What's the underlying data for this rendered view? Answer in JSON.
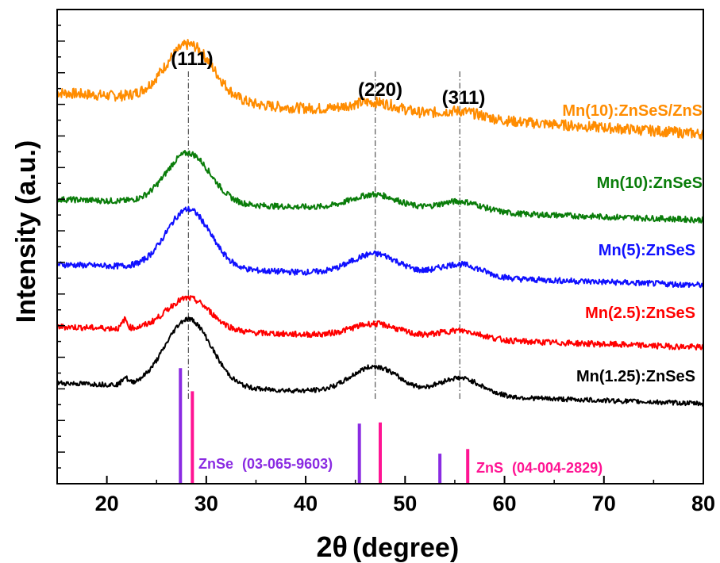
{
  "chart_data": {
    "type": "line",
    "title": "",
    "xlabel_main": "2θ",
    "xlabel_unit": "(degree)",
    "ylabel": "Intensity (a.u.)",
    "xlim": [
      15,
      80
    ],
    "xticks": [
      "20",
      "30",
      "40",
      "50",
      "60",
      "70",
      "80"
    ],
    "xtick_values": [
      20,
      30,
      40,
      50,
      60,
      70,
      80
    ],
    "grid": false,
    "colors": {
      "orange": "#ff8c00",
      "green": "#0a7d0a",
      "blue": "#1010ff",
      "red": "#ff0000",
      "black": "#000000",
      "purple": "#8a2be2",
      "pink": "#ff1493"
    },
    "peak_planes": [
      {
        "label": "(111)",
        "x": 28.2
      },
      {
        "label": "(220)",
        "x": 47.0
      },
      {
        "label": "(311)",
        "x": 55.5
      }
    ],
    "series": [
      {
        "name": "Mn(10):ZnSeS/ZnS",
        "color": "#ff8c00",
        "baseline_start": 6.6,
        "baseline_end": 5.9,
        "noise": 0.09,
        "peaks": [
          {
            "x": 28.3,
            "height": 0.95,
            "width": 2.4
          },
          {
            "x": 47.0,
            "height": 0.18,
            "width": 2.5
          },
          {
            "x": 55.5,
            "height": 0.12,
            "width": 2.2
          }
        ]
      },
      {
        "name": "Mn(10):ZnSeS",
        "color": "#0a7d0a",
        "baseline_start": 4.8,
        "baseline_end": 4.45,
        "noise": 0.05,
        "peaks": [
          {
            "x": 28.2,
            "height": 0.85,
            "width": 2.2
          },
          {
            "x": 47.0,
            "height": 0.25,
            "width": 2.4
          },
          {
            "x": 55.5,
            "height": 0.18,
            "width": 2.2
          }
        ]
      },
      {
        "name": "Mn(5):ZnSeS",
        "color": "#1010ff",
        "baseline_start": 3.7,
        "baseline_end": 3.35,
        "noise": 0.05,
        "peaks": [
          {
            "x": 28.2,
            "height": 1.0,
            "width": 2.2
          },
          {
            "x": 47.0,
            "height": 0.35,
            "width": 2.4
          },
          {
            "x": 55.5,
            "height": 0.22,
            "width": 2.2
          }
        ]
      },
      {
        "name": "Mn(2.5):ZnSeS",
        "color": "#ff0000",
        "baseline_start": 2.65,
        "baseline_end": 2.3,
        "noise": 0.05,
        "peaks": [
          {
            "x": 28.2,
            "height": 0.55,
            "width": 2.2
          },
          {
            "x": 21.8,
            "height": 0.15,
            "width": 0.25
          },
          {
            "x": 47.0,
            "height": 0.22,
            "width": 2.4
          },
          {
            "x": 55.5,
            "height": 0.15,
            "width": 2.2
          }
        ]
      },
      {
        "name": "Mn(1.25):ZnSeS",
        "color": "#000000",
        "baseline_start": 1.7,
        "baseline_end": 1.35,
        "noise": 0.04,
        "peaks": [
          {
            "x": 28.2,
            "height": 1.15,
            "width": 2.3
          },
          {
            "x": 21.8,
            "height": 0.12,
            "width": 0.25
          },
          {
            "x": 47.0,
            "height": 0.45,
            "width": 2.4
          },
          {
            "x": 55.5,
            "height": 0.3,
            "width": 2.2
          }
        ]
      }
    ],
    "ylim": [
      0,
      8
    ],
    "reference_patterns": [
      {
        "name": "ZnSe",
        "code": "(03-065-9603)",
        "color": "#8a2be2",
        "lines": [
          {
            "x": 27.4,
            "intensity": 1.0
          },
          {
            "x": 45.4,
            "intensity": 0.52
          },
          {
            "x": 53.5,
            "intensity": 0.26
          }
        ]
      },
      {
        "name": "ZnS",
        "code": "(04-004-2829)",
        "color": "#ff1493",
        "lines": [
          {
            "x": 28.6,
            "intensity": 0.8
          },
          {
            "x": 47.5,
            "intensity": 0.53
          },
          {
            "x": 56.3,
            "intensity": 0.3
          }
        ]
      }
    ]
  }
}
